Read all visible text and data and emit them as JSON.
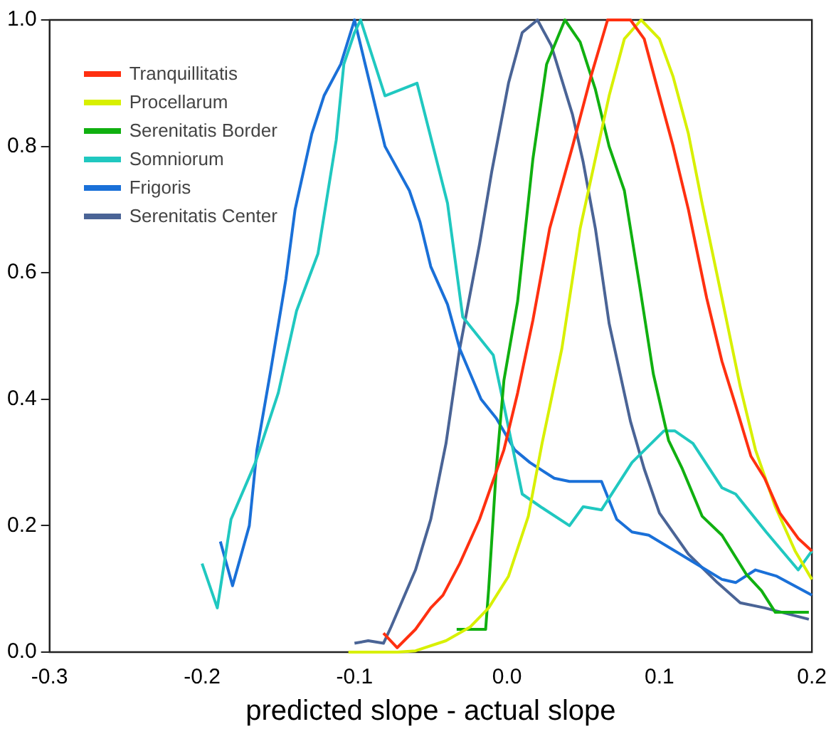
{
  "chart_data": {
    "type": "line",
    "xlabel": "predicted slope - actual slope",
    "xlim": [
      -0.3,
      0.2
    ],
    "xticks": [
      {
        "value": -0.3,
        "label": "-0.3"
      },
      {
        "value": -0.2,
        "label": "-0.2"
      },
      {
        "value": -0.1,
        "label": "-0.1"
      },
      {
        "value": 0,
        "label": "0.0"
      },
      {
        "value": 0.1,
        "label": "0.1"
      },
      {
        "value": 0.2,
        "label": "0.2"
      }
    ],
    "ylim": [
      0,
      1
    ],
    "yticks": [
      {
        "value": 0,
        "label": "0.0"
      },
      {
        "value": 0.2,
        "label": "0.2"
      },
      {
        "value": 0.4,
        "label": "0.4"
      },
      {
        "value": 0.6,
        "label": "0.6"
      },
      {
        "value": 0.8,
        "label": "0.8"
      },
      {
        "value": 1,
        "label": "1.0"
      }
    ],
    "grid": false,
    "legend": "top left",
    "marker": "none",
    "line_style": "solid",
    "series": [
      {
        "name": "Tranquillitatis",
        "color": "#ff3010",
        "x": [
          -0.081,
          -0.072,
          -0.06,
          -0.05,
          -0.042,
          -0.031,
          -0.018,
          -0.002,
          0.007,
          0.017,
          0.028,
          0.043,
          0.055,
          0.066,
          0.081,
          0.09,
          0.1,
          0.109,
          0.119,
          0.131,
          0.141,
          0.15,
          0.16,
          0.169,
          0.179,
          0.191,
          0.2
        ],
        "values": [
          0.03,
          0.007,
          0.036,
          0.07,
          0.09,
          0.14,
          0.21,
          0.32,
          0.41,
          0.525,
          0.67,
          0.8,
          0.91,
          1.0,
          1.0,
          0.97,
          0.88,
          0.8,
          0.7,
          0.56,
          0.46,
          0.39,
          0.31,
          0.275,
          0.22,
          0.18,
          0.16
        ]
      },
      {
        "name": "Procellarum",
        "color": "#d8f000",
        "x": [
          -0.104,
          -0.072,
          -0.06,
          -0.04,
          -0.024,
          -0.012,
          0.001,
          0.014,
          0.023,
          0.036,
          0.048,
          0.067,
          0.077,
          0.088,
          0.1,
          0.109,
          0.119,
          0.128,
          0.141,
          0.153,
          0.163,
          0.176,
          0.189,
          0.2
        ],
        "values": [
          0.0,
          0.0,
          0.002,
          0.018,
          0.04,
          0.07,
          0.12,
          0.215,
          0.33,
          0.48,
          0.67,
          0.88,
          0.97,
          1.0,
          0.97,
          0.91,
          0.82,
          0.71,
          0.56,
          0.42,
          0.32,
          0.23,
          0.16,
          0.115
        ]
      },
      {
        "name": "Serenitatis Border",
        "color": "#10b010",
        "x": [
          -0.033,
          -0.014,
          -0.012,
          -0.007,
          -0.002,
          0.007,
          0.017,
          0.026,
          0.038,
          0.048,
          0.058,
          0.067,
          0.077,
          0.087,
          0.096,
          0.106,
          0.115,
          0.128,
          0.141,
          0.157,
          0.167,
          0.176,
          0.189,
          0.198
        ],
        "values": [
          0.036,
          0.036,
          0.1,
          0.29,
          0.43,
          0.555,
          0.78,
          0.93,
          1.0,
          0.965,
          0.89,
          0.8,
          0.73,
          0.58,
          0.44,
          0.335,
          0.29,
          0.215,
          0.185,
          0.123,
          0.097,
          0.063,
          0.063,
          0.063
        ]
      },
      {
        "name": "Somniorum",
        "color": "#20c8c0",
        "x": [
          -0.2,
          -0.19,
          -0.181,
          -0.165,
          -0.15,
          -0.138,
          -0.124,
          -0.112,
          -0.107,
          -0.1,
          -0.096,
          -0.08,
          -0.059,
          -0.039,
          -0.029,
          -0.009,
          -0.002,
          0.01,
          0.022,
          0.041,
          0.05,
          0.062,
          0.082,
          0.103,
          0.11,
          0.122,
          0.141,
          0.15,
          0.17,
          0.191,
          0.2
        ],
        "values": [
          0.14,
          0.07,
          0.21,
          0.3,
          0.41,
          0.54,
          0.63,
          0.81,
          0.93,
          0.98,
          1.0,
          0.88,
          0.9,
          0.71,
          0.53,
          0.47,
          0.39,
          0.25,
          0.23,
          0.2,
          0.23,
          0.225,
          0.3,
          0.35,
          0.35,
          0.33,
          0.26,
          0.25,
          0.19,
          0.13,
          0.16
        ]
      },
      {
        "name": "Frigoris",
        "color": "#1a70d8",
        "x": [
          -0.188,
          -0.18,
          -0.169,
          -0.164,
          -0.155,
          -0.145,
          -0.139,
          -0.128,
          -0.12,
          -0.109,
          -0.1,
          -0.093,
          -0.08,
          -0.064,
          -0.057,
          -0.05,
          -0.039,
          -0.031,
          -0.017,
          -0.007,
          0.005,
          0.015,
          0.031,
          0.041,
          0.062,
          0.072,
          0.082,
          0.093,
          0.117,
          0.141,
          0.15,
          0.163,
          0.177,
          0.2
        ],
        "values": [
          0.175,
          0.105,
          0.2,
          0.32,
          0.445,
          0.59,
          0.7,
          0.82,
          0.88,
          0.93,
          1.0,
          0.93,
          0.8,
          0.73,
          0.68,
          0.61,
          0.55,
          0.48,
          0.4,
          0.37,
          0.32,
          0.3,
          0.275,
          0.27,
          0.27,
          0.21,
          0.19,
          0.185,
          0.15,
          0.115,
          0.11,
          0.13,
          0.12,
          0.09
        ]
      },
      {
        "name": "Serenitatis Center",
        "color": "#4a6496",
        "x": [
          -0.1,
          -0.091,
          -0.081,
          -0.076,
          -0.06,
          -0.05,
          -0.04,
          -0.031,
          -0.018,
          -0.01,
          0.001,
          0.01,
          0.02,
          0.029,
          0.043,
          0.05,
          0.058,
          0.067,
          0.081,
          0.09,
          0.1,
          0.119,
          0.138,
          0.153,
          0.169,
          0.198
        ],
        "values": [
          0.014,
          0.018,
          0.014,
          0.04,
          0.13,
          0.21,
          0.33,
          0.48,
          0.645,
          0.76,
          0.9,
          0.98,
          1.0,
          0.96,
          0.85,
          0.775,
          0.67,
          0.52,
          0.365,
          0.29,
          0.22,
          0.155,
          0.11,
          0.078,
          0.07,
          0.052
        ]
      }
    ]
  }
}
